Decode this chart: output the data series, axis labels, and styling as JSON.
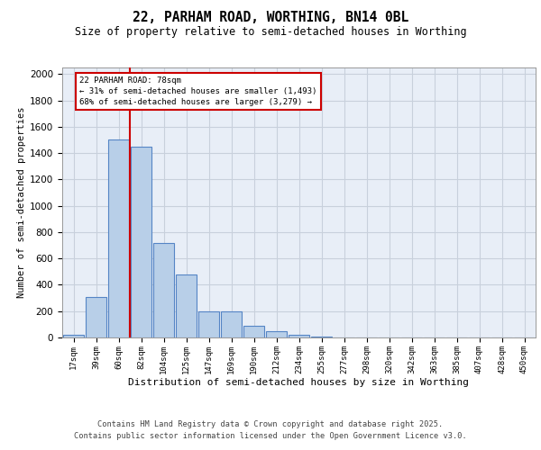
{
  "title1": "22, PARHAM ROAD, WORTHING, BN14 0BL",
  "title2": "Size of property relative to semi-detached houses in Worthing",
  "xlabel": "Distribution of semi-detached houses by size in Worthing",
  "ylabel": "Number of semi-detached properties",
  "footer1": "Contains HM Land Registry data © Crown copyright and database right 2025.",
  "footer2": "Contains public sector information licensed under the Open Government Licence v3.0.",
  "categories": [
    "17sqm",
    "39sqm",
    "60sqm",
    "82sqm",
    "104sqm",
    "125sqm",
    "147sqm",
    "169sqm",
    "190sqm",
    "212sqm",
    "234sqm",
    "255sqm",
    "277sqm",
    "298sqm",
    "320sqm",
    "342sqm",
    "363sqm",
    "385sqm",
    "407sqm",
    "428sqm",
    "450sqm"
  ],
  "values": [
    20,
    310,
    1500,
    1450,
    720,
    480,
    195,
    195,
    90,
    45,
    20,
    5,
    2,
    1,
    0,
    0,
    0,
    0,
    0,
    0,
    0
  ],
  "bar_color": "#b8cfe8",
  "bar_edge_color": "#5585c5",
  "background_color": "#e8eef7",
  "grid_color": "#c8d0dc",
  "annotation_title": "22 PARHAM ROAD: 78sqm",
  "annotation_line1": "← 31% of semi-detached houses are smaller (1,493)",
  "annotation_line2": "68% of semi-detached houses are larger (3,279) →",
  "annotation_box_color": "#ffffff",
  "annotation_box_edge": "#cc0000",
  "red_line_color": "#cc0000",
  "ylim": [
    0,
    2050
  ],
  "yticks": [
    0,
    200,
    400,
    600,
    800,
    1000,
    1200,
    1400,
    1600,
    1800,
    2000
  ],
  "title1_fontsize": 10.5,
  "title2_fontsize": 8.5,
  "ylabel_fontsize": 7.5,
  "xlabel_fontsize": 8.0,
  "tick_fontsize": 7.5,
  "xtick_fontsize": 6.5,
  "ann_fontsize": 6.5,
  "footer_fontsize": 6.2
}
